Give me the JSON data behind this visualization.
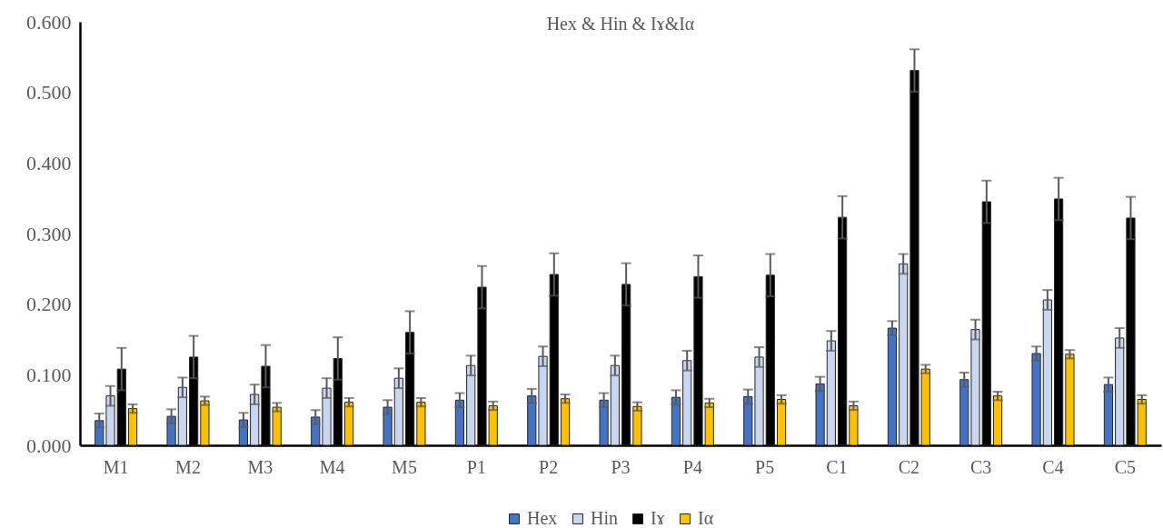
{
  "chart_data": {
    "type": "bar",
    "title": "Hex & Hin & Iɤ&Iα",
    "categories": [
      "M1",
      "M2",
      "M3",
      "M4",
      "M5",
      "P1",
      "P2",
      "P3",
      "P4",
      "P5",
      "C1",
      "C2",
      "C3",
      "C4",
      "C5"
    ],
    "series": [
      {
        "name": "Hex",
        "color": "#4472c4",
        "values": [
          0.035,
          0.041,
          0.036,
          0.04,
          0.054,
          0.064,
          0.07,
          0.064,
          0.068,
          0.069,
          0.087,
          0.166,
          0.093,
          0.13,
          0.086
        ],
        "errors": [
          0.01,
          0.01,
          0.01,
          0.01,
          0.01,
          0.01,
          0.01,
          0.01,
          0.01,
          0.01,
          0.01,
          0.01,
          0.01,
          0.01,
          0.01
        ]
      },
      {
        "name": "Hin",
        "color": "#c9d6f0",
        "values": [
          0.07,
          0.082,
          0.072,
          0.081,
          0.095,
          0.113,
          0.126,
          0.113,
          0.12,
          0.125,
          0.148,
          0.257,
          0.164,
          0.206,
          0.152
        ],
        "errors": [
          0.014,
          0.014,
          0.014,
          0.014,
          0.014,
          0.014,
          0.014,
          0.014,
          0.014,
          0.014,
          0.014,
          0.014,
          0.014,
          0.014,
          0.014
        ]
      },
      {
        "name": "Iɤ",
        "color": "#000000",
        "values": [
          0.108,
          0.125,
          0.112,
          0.123,
          0.16,
          0.224,
          0.242,
          0.228,
          0.239,
          0.241,
          0.323,
          0.531,
          0.345,
          0.349,
          0.322
        ],
        "errors": [
          0.03,
          0.03,
          0.03,
          0.03,
          0.03,
          0.03,
          0.03,
          0.03,
          0.03,
          0.03,
          0.03,
          0.03,
          0.03,
          0.03,
          0.03
        ]
      },
      {
        "name": "Iα",
        "color": "#ffc000",
        "values": [
          0.052,
          0.063,
          0.054,
          0.061,
          0.061,
          0.056,
          0.066,
          0.055,
          0.06,
          0.065,
          0.056,
          0.108,
          0.07,
          0.129,
          0.065
        ],
        "errors": [
          0.006,
          0.006,
          0.006,
          0.006,
          0.006,
          0.006,
          0.006,
          0.006,
          0.006,
          0.006,
          0.006,
          0.006,
          0.006,
          0.006,
          0.006
        ]
      }
    ],
    "ylim": [
      0,
      0.6
    ],
    "yticks": [
      {
        "value": 0,
        "label": "0.000"
      },
      {
        "value": 0.1,
        "label": "0.100"
      },
      {
        "value": 0.2,
        "label": "0.200"
      },
      {
        "value": 0.3,
        "label": "0.300"
      },
      {
        "value": 0.4,
        "label": "0.400"
      },
      {
        "value": 0.5,
        "label": "0.500"
      },
      {
        "value": 0.6,
        "label": "0.600"
      }
    ],
    "grid": false,
    "legend": "bottom"
  }
}
